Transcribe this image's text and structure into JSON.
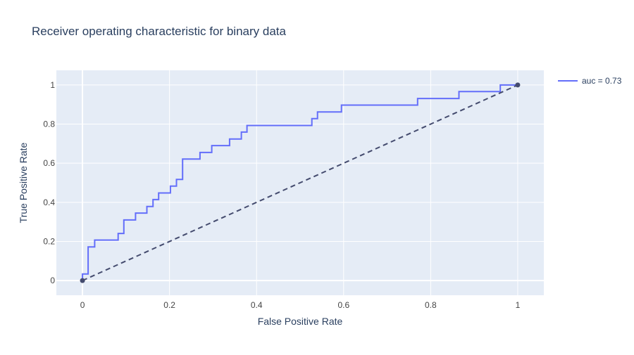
{
  "colors": {
    "plot_bg": "#e5ecf6",
    "grid": "#ffffff",
    "roc_line": "#636efa",
    "diagonal": "#444b6e",
    "text": "#2a3f5f",
    "tick_text": "#444444"
  },
  "chart_data": {
    "type": "line",
    "title": "Receiver operating characteristic for binary data",
    "xlabel": "False Positive Rate",
    "ylabel": "True Positive Rate",
    "xlim": [
      -0.06,
      1.06
    ],
    "ylim": [
      -0.075,
      1.075
    ],
    "x_ticks": [
      0,
      0.2,
      0.4,
      0.6,
      0.8,
      1
    ],
    "x_tick_labels": [
      "0",
      "0.2",
      "0.4",
      "0.6",
      "0.8",
      "1"
    ],
    "y_ticks": [
      0,
      0.2,
      0.4,
      0.6,
      0.8,
      1
    ],
    "y_tick_labels": [
      "0",
      "0.2",
      "0.4",
      "0.6",
      "0.8",
      "1"
    ],
    "grid": true,
    "legend_position": "top-right",
    "series": [
      {
        "name": "auc = 0.73",
        "style": "step",
        "x": [
          0,
          0,
          0.013,
          0.013,
          0.028,
          0.028,
          0.082,
          0.082,
          0.095,
          0.095,
          0.122,
          0.122,
          0.148,
          0.148,
          0.162,
          0.162,
          0.175,
          0.175,
          0.202,
          0.202,
          0.216,
          0.216,
          0.23,
          0.23,
          0.27,
          0.27,
          0.297,
          0.297,
          0.338,
          0.338,
          0.365,
          0.365,
          0.378,
          0.378,
          0.527,
          0.527,
          0.54,
          0.54,
          0.595,
          0.595,
          0.77,
          0.77,
          0.865,
          0.865,
          0.96,
          0.96,
          1
        ],
        "y": [
          0,
          0.034,
          0.034,
          0.172,
          0.172,
          0.207,
          0.207,
          0.241,
          0.241,
          0.31,
          0.31,
          0.345,
          0.345,
          0.379,
          0.379,
          0.414,
          0.414,
          0.448,
          0.448,
          0.483,
          0.483,
          0.517,
          0.517,
          0.621,
          0.621,
          0.655,
          0.655,
          0.69,
          0.69,
          0.724,
          0.724,
          0.759,
          0.759,
          0.793,
          0.793,
          0.828,
          0.828,
          0.862,
          0.862,
          0.897,
          0.897,
          0.931,
          0.931,
          0.966,
          0.966,
          1.0,
          1.0
        ]
      },
      {
        "name": "",
        "style": "dashed",
        "x": [
          0,
          1
        ],
        "y": [
          0,
          1
        ]
      }
    ]
  }
}
